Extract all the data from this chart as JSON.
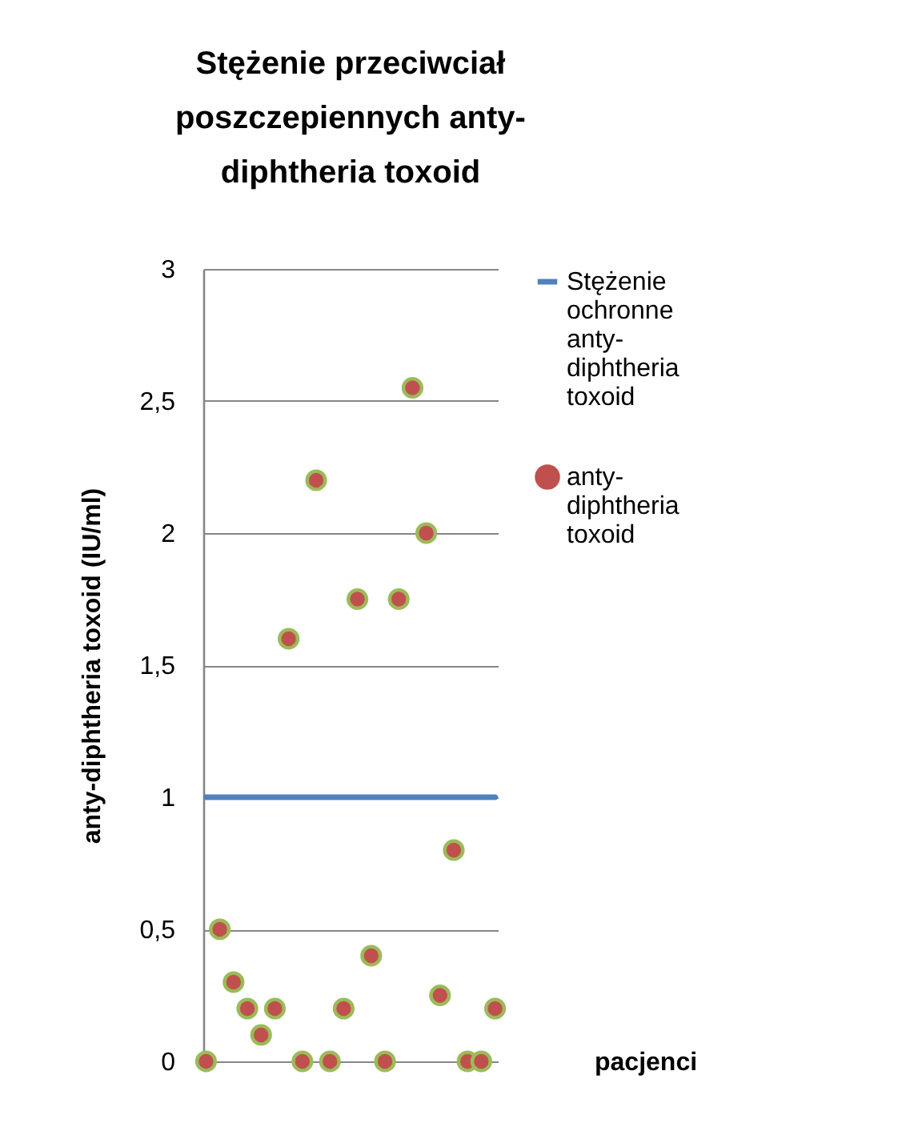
{
  "chart_data": {
    "type": "scatter",
    "title": "Stężenie przeciwciał poszczepiennych anty-diphtheria toxoid",
    "xlabel": "pacjenci",
    "ylabel": "anty-diphtheria toxoid (IU/ml)",
    "categories": [
      null,
      null,
      null,
      null,
      null,
      null,
      null,
      null,
      null,
      null,
      null,
      null,
      null,
      null,
      null,
      null,
      null,
      null,
      null,
      null,
      null,
      null
    ],
    "series": [
      {
        "name": "Stężenie ochronne anty-diphtheria toxoid",
        "type": "line",
        "color": "#4f81bd",
        "values": [
          1,
          1,
          1,
          1,
          1,
          1,
          1,
          1,
          1,
          1,
          1,
          1,
          1,
          1,
          1,
          1,
          1,
          1,
          1,
          1,
          1,
          1
        ]
      },
      {
        "name": "anty-diphtheria toxoid",
        "marker": "circle",
        "color": "#c0504d",
        "values": [
          0,
          0.5,
          0.3,
          0.2,
          0.1,
          0.2,
          1.6,
          0,
          2.2,
          0,
          0.2,
          1.75,
          0.4,
          0,
          1.75,
          2.55,
          2.0,
          0.25,
          0.8,
          0,
          0,
          0.2
        ]
      }
    ],
    "ylim": [
      0,
      3
    ],
    "yticks": [
      0,
      {
        "value": 0.5,
        "label": "0,5"
      },
      1,
      {
        "value": 1.5,
        "label": "1,5"
      },
      2,
      {
        "value": 2.5,
        "label": "2,5"
      },
      3
    ],
    "grid": "y",
    "legend": "right",
    "tick_labels": "y"
  }
}
